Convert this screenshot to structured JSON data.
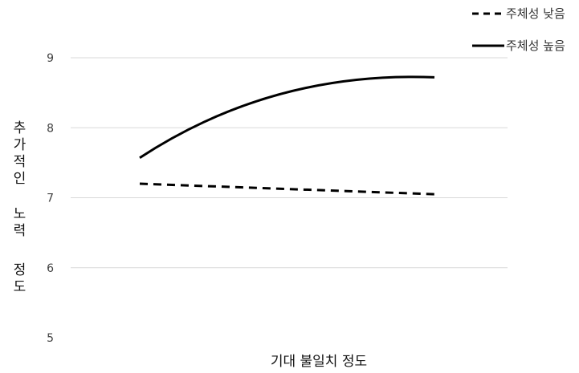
{
  "chart_data": {
    "type": "line",
    "title": "",
    "xlabel": "기대 불일치 정도",
    "ylabel": "추가적인 노력 정도",
    "ylim": [
      5,
      9
    ],
    "yticks": [
      5,
      6,
      7,
      8,
      9
    ],
    "x": [
      0,
      1
    ],
    "grid": true,
    "legend_position": "top-right",
    "series": [
      {
        "name": "주체성 낮음",
        "style": "dashed",
        "color": "#000000",
        "values": [
          7.2,
          7.05
        ]
      },
      {
        "name": "주체성 높음",
        "style": "solid",
        "color": "#000000",
        "values": [
          7.57,
          8.72
        ]
      }
    ]
  }
}
